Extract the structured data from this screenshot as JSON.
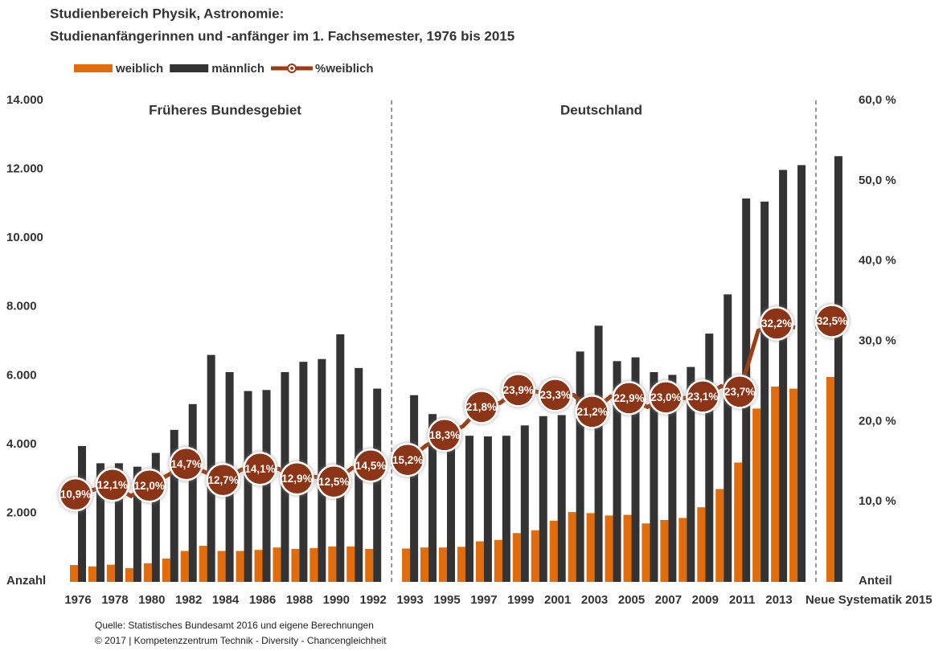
{
  "chart_data": {
    "type": "bar",
    "title": "Studienbereich Physik, Astronomie:",
    "subtitle": "Studienanfängerinnen und -anfänger im 1. Fachsemester, 1976 bis 2015",
    "y_axis_label": "Anzahl",
    "y2_axis_label": "Anteil",
    "annotations": [
      "Früheres Bundesgebiet",
      "Deutschland"
    ],
    "source": [
      "Quelle: Statistisches Bundesamt 2016 und eigene Berechnungen",
      "© 2017 | Kompetenzzentrum Technik - Diversity - Chancengleichheit"
    ],
    "categories": [
      "1976",
      null,
      "1978",
      null,
      "1980",
      null,
      "1982",
      null,
      "1984",
      null,
      "1986",
      null,
      "1988",
      null,
      "1990",
      null,
      "1992",
      null,
      "1993",
      null,
      "1995",
      null,
      "1997",
      null,
      "1999",
      null,
      "2001",
      null,
      "2003",
      null,
      "2005",
      null,
      "2007",
      null,
      "2009",
      null,
      "2011",
      null,
      "2013",
      null,
      null,
      "Neue Systematik 2015"
    ],
    "series": [
      {
        "name": "weiblich",
        "color": "#e36c0a",
        "values": [
          490,
          450,
          500,
          400,
          540,
          680,
          900,
          1050,
          900,
          900,
          930,
          1000,
          960,
          980,
          1030,
          1030,
          960,
          null,
          970,
          1000,
          1000,
          1020,
          1180,
          1220,
          1420,
          1500,
          1780,
          2030,
          2000,
          1930,
          1950,
          1700,
          1800,
          1860,
          2170,
          2700,
          3470,
          5040,
          5680,
          5620,
          null,
          5960
        ]
      },
      {
        "name": "männlich",
        "color": "#333333",
        "values": [
          3950,
          3450,
          3450,
          3350,
          3750,
          4420,
          5170,
          6600,
          6100,
          5550,
          5580,
          6100,
          6400,
          6480,
          7200,
          6220,
          5620,
          null,
          5430,
          4880,
          4100,
          4250,
          4230,
          4250,
          4550,
          4820,
          4850,
          6700,
          7450,
          6420,
          6530,
          6100,
          6020,
          6250,
          7220,
          8360,
          11150,
          11060,
          11980,
          12120,
          null,
          12380
        ]
      },
      {
        "name": "%weiblich",
        "color": "#9c3d14",
        "type": "line",
        "axis": "y2",
        "values": [
          10.9,
          11.5,
          12.1,
          10.7,
          12.0,
          13.3,
          14.7,
          13.7,
          12.7,
          14.0,
          14.1,
          14.1,
          12.9,
          13.1,
          12.5,
          14.2,
          14.5,
          null,
          15.2,
          17.0,
          18.3,
          19.4,
          21.8,
          22.3,
          23.9,
          23.7,
          23.3,
          23.3,
          21.2,
          23.1,
          22.9,
          21.8,
          23.0,
          22.9,
          23.1,
          24.4,
          23.7,
          31.3,
          32.2,
          31.7,
          null,
          32.5
        ],
        "value_labels": [
          "10,9%",
          null,
          "12,1%",
          null,
          "12,0%",
          null,
          "14,7%",
          null,
          "12,7%",
          null,
          "14,1%",
          null,
          "12,9%",
          null,
          "12,5%",
          null,
          "14,5%",
          null,
          "15,2%",
          null,
          "18,3%",
          null,
          "21,8%",
          null,
          "23,9%",
          null,
          "23,3%",
          null,
          "21,2%",
          null,
          "22,9%",
          null,
          "23,0%",
          null,
          "23,1%",
          null,
          "23,7%",
          null,
          "32,2%",
          null,
          null,
          "32,5%"
        ]
      }
    ],
    "ylim": [
      0,
      14000
    ],
    "yticks": [
      {
        "value": 2000,
        "label": "2.000"
      },
      {
        "value": 4000,
        "label": "4.000"
      },
      {
        "value": 6000,
        "label": "6.000"
      },
      {
        "value": 8000,
        "label": "8.000"
      },
      {
        "value": 10000,
        "label": "10.000"
      },
      {
        "value": 12000,
        "label": "12.000"
      },
      {
        "value": 14000,
        "label": "14.000"
      }
    ],
    "y2lim": [
      0,
      60
    ],
    "y2ticks": [
      {
        "value": 10,
        "label": "10,0 %"
      },
      {
        "value": 20,
        "label": "20,0 %"
      },
      {
        "value": 30,
        "label": "30,0 %"
      },
      {
        "value": 40,
        "label": "40,0 %"
      },
      {
        "value": 50,
        "label": "50,0 %"
      },
      {
        "value": 60,
        "label": "60,0 %"
      }
    ],
    "grid": false
  }
}
